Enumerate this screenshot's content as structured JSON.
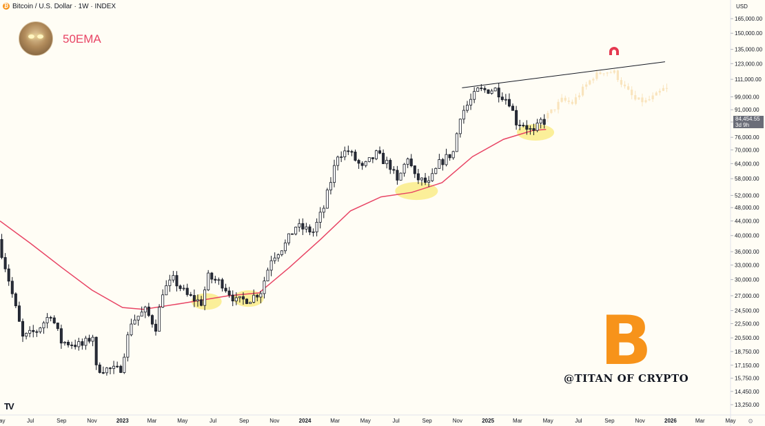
{
  "header": {
    "symbol_title": "Bitcoin / U.S. Dollar · 1W · INDEX",
    "icon": "bitcoin-icon"
  },
  "overlay": {
    "ema_label": "50EMA",
    "watermark": "@TITAN OF CRYPTO",
    "btc_logo_text": "B",
    "tv_logo_text": "TV",
    "accent_color": "#f7931a",
    "ema_color": "#e84464"
  },
  "price_tag": {
    "price": "84,454.55",
    "countdown": "3d 9h"
  },
  "chart_data": {
    "type": "candlestick",
    "title": "",
    "currency": "USD",
    "interval": "1W",
    "scale": "log",
    "x_range": [
      "2022-05-01",
      "2026-05-01"
    ],
    "y_range": [
      12500,
      175000
    ],
    "y_ticks": [
      "165,000.00",
      "150,000.00",
      "135,000.00",
      "123,000.00",
      "111,000.00",
      "99,000.00",
      "91,000.00",
      "84,000.00",
      "76,000.00",
      "70,000.00",
      "64,000.00",
      "58,000.00",
      "52,000.00",
      "48,000.00",
      "44,000.00",
      "40,000.00",
      "36,000.00",
      "33,000.00",
      "30,000.00",
      "27,000.00",
      "24,500.00",
      "22,500.00",
      "20,500.00",
      "18,750.00",
      "17,150.00",
      "15,750.00",
      "14,450.00",
      "13,250.00"
    ],
    "y_tick_values": [
      165000,
      150000,
      135000,
      123000,
      111000,
      99000,
      91000,
      84000,
      76000,
      70000,
      64000,
      58000,
      52000,
      48000,
      44000,
      40000,
      36000,
      33000,
      30000,
      27000,
      24500,
      22500,
      20500,
      18750,
      17150,
      15750,
      14450,
      13250
    ],
    "x_ticks": [
      {
        "label": "May",
        "date": "2022-05-01",
        "bold": false
      },
      {
        "label": "Jul",
        "date": "2022-07-01",
        "bold": false
      },
      {
        "label": "Sep",
        "date": "2022-09-01",
        "bold": false
      },
      {
        "label": "Nov",
        "date": "2022-11-01",
        "bold": false
      },
      {
        "label": "2023",
        "date": "2023-01-01",
        "bold": true
      },
      {
        "label": "Mar",
        "date": "2023-03-01",
        "bold": false
      },
      {
        "label": "May",
        "date": "2023-05-01",
        "bold": false
      },
      {
        "label": "Jul",
        "date": "2023-07-01",
        "bold": false
      },
      {
        "label": "Sep",
        "date": "2023-09-01",
        "bold": false
      },
      {
        "label": "Nov",
        "date": "2023-11-01",
        "bold": false
      },
      {
        "label": "2024",
        "date": "2024-01-01",
        "bold": true
      },
      {
        "label": "Mar",
        "date": "2024-03-01",
        "bold": false
      },
      {
        "label": "May",
        "date": "2024-05-01",
        "bold": false
      },
      {
        "label": "Jul",
        "date": "2024-07-01",
        "bold": false
      },
      {
        "label": "Sep",
        "date": "2024-09-01",
        "bold": false
      },
      {
        "label": "Nov",
        "date": "2024-11-01",
        "bold": false
      },
      {
        "label": "2025",
        "date": "2025-01-01",
        "bold": true
      },
      {
        "label": "Mar",
        "date": "2025-03-01",
        "bold": false
      },
      {
        "label": "May",
        "date": "2025-05-01",
        "bold": false
      },
      {
        "label": "Jul",
        "date": "2025-07-01",
        "bold": false
      },
      {
        "label": "Sep",
        "date": "2025-09-01",
        "bold": false
      },
      {
        "label": "Nov",
        "date": "2025-11-01",
        "bold": false
      },
      {
        "label": "2026",
        "date": "2026-01-01",
        "bold": true
      },
      {
        "label": "Mar",
        "date": "2026-03-01",
        "bold": false
      },
      {
        "label": "May",
        "date": "2026-05-01",
        "bold": false
      }
    ],
    "price_anchors": [
      [
        "2022-05-01",
        39000
      ],
      [
        "2022-05-22",
        30000
      ],
      [
        "2022-06-19",
        20500
      ],
      [
        "2022-07-17",
        21500
      ],
      [
        "2022-08-14",
        24000
      ],
      [
        "2022-09-04",
        20000
      ],
      [
        "2022-10-16",
        19500
      ],
      [
        "2022-11-06",
        20800
      ],
      [
        "2022-11-13",
        16800
      ],
      [
        "2022-12-31",
        16600
      ],
      [
        "2023-01-22",
        22800
      ],
      [
        "2023-02-19",
        24500
      ],
      [
        "2023-03-12",
        22000
      ],
      [
        "2023-03-26",
        27800
      ],
      [
        "2023-04-16",
        30000
      ],
      [
        "2023-05-14",
        27000
      ],
      [
        "2023-06-11",
        25800
      ],
      [
        "2023-06-25",
        30500
      ],
      [
        "2023-07-23",
        29200
      ],
      [
        "2023-08-20",
        26000
      ],
      [
        "2023-09-17",
        26500
      ],
      [
        "2023-10-08",
        27800
      ],
      [
        "2023-10-29",
        34500
      ],
      [
        "2023-11-26",
        37800
      ],
      [
        "2023-12-17",
        42500
      ],
      [
        "2024-01-21",
        41000
      ],
      [
        "2024-02-11",
        48000
      ],
      [
        "2024-03-10",
        68000
      ],
      [
        "2024-03-31",
        69500
      ],
      [
        "2024-04-28",
        62000
      ],
      [
        "2024-05-26",
        68000
      ],
      [
        "2024-06-23",
        63000
      ],
      [
        "2024-07-07",
        56500
      ],
      [
        "2024-07-28",
        67000
      ],
      [
        "2024-08-11",
        58500
      ],
      [
        "2024-09-08",
        56000
      ],
      [
        "2024-09-29",
        64000
      ],
      [
        "2024-10-27",
        69000
      ],
      [
        "2024-11-10",
        88000
      ],
      [
        "2024-12-15",
        103000
      ],
      [
        "2025-01-19",
        104000
      ],
      [
        "2025-02-16",
        96000
      ],
      [
        "2025-03-02",
        84000
      ],
      [
        "2025-03-16",
        83000
      ],
      [
        "2025-04-06",
        78000
      ],
      [
        "2025-04-20",
        84400
      ]
    ],
    "projection": [
      [
        "2025-04-27",
        86000
      ],
      [
        "2025-05-11",
        90000
      ],
      [
        "2025-06-01",
        97000
      ],
      [
        "2025-06-22",
        95000
      ],
      [
        "2025-07-13",
        104000
      ],
      [
        "2025-08-03",
        113000
      ],
      [
        "2025-08-24",
        117000
      ],
      [
        "2025-09-14",
        116000
      ],
      [
        "2025-10-05",
        105000
      ],
      [
        "2025-10-26",
        97000
      ],
      [
        "2025-11-16",
        96000
      ],
      [
        "2025-12-07",
        100000
      ],
      [
        "2025-12-21",
        104000
      ]
    ],
    "ema50": [
      [
        "2022-05-01",
        44000
      ],
      [
        "2022-07-01",
        38000
      ],
      [
        "2022-09-01",
        32500
      ],
      [
        "2022-11-01",
        28000
      ],
      [
        "2023-01-01",
        25000
      ],
      [
        "2023-02-12",
        24700
      ],
      [
        "2023-05-01",
        25700
      ],
      [
        "2023-08-01",
        27000
      ],
      [
        "2023-10-01",
        27500
      ],
      [
        "2023-12-01",
        32500
      ],
      [
        "2024-02-01",
        39000
      ],
      [
        "2024-04-01",
        47000
      ],
      [
        "2024-06-01",
        51500
      ],
      [
        "2024-08-01",
        53000
      ],
      [
        "2024-10-01",
        56500
      ],
      [
        "2024-12-01",
        67000
      ],
      [
        "2025-02-01",
        75000
      ],
      [
        "2025-04-01",
        79500
      ],
      [
        "2025-04-27",
        80000
      ]
    ],
    "trendline": [
      [
        "2024-11-10",
        105000
      ],
      [
        "2025-12-21",
        124500
      ]
    ],
    "highlight_zones": [
      {
        "date": "2023-06-18",
        "price": 26000
      },
      {
        "date": "2023-09-10",
        "price": 26500
      },
      {
        "date": "2024-08-11",
        "price": 53500
      },
      {
        "date": "2025-04-06",
        "price": 78500
      }
    ],
    "last_price": 84454.55
  }
}
